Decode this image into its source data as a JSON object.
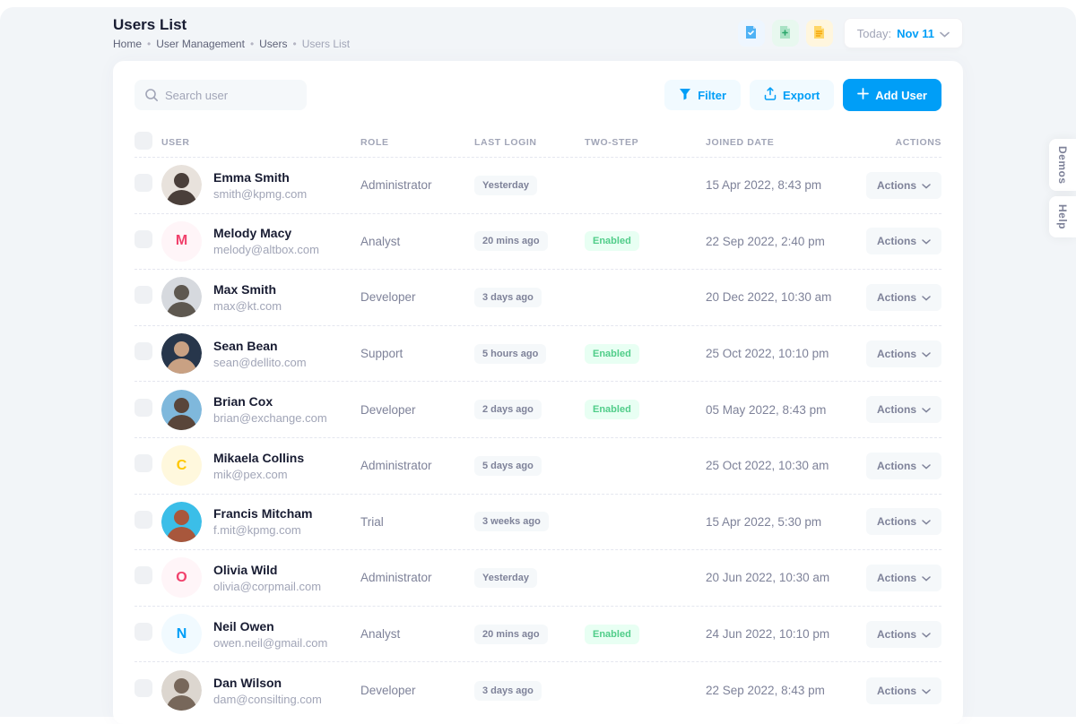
{
  "page": {
    "title": "Users List",
    "breadcrumb": [
      {
        "label": "Home"
      },
      {
        "label": "User Management"
      },
      {
        "label": "Users"
      },
      {
        "label": "Users List",
        "muted": true
      }
    ]
  },
  "topbar": {
    "quick_icons": [
      "file-check-icon",
      "file-plus-icon",
      "file-lines-icon"
    ],
    "today_label": "Today:",
    "today_value": "Nov 11"
  },
  "toolbar": {
    "search_placeholder": "Search user",
    "filter_label": "Filter",
    "export_label": "Export",
    "add_user_label": "Add User"
  },
  "table": {
    "headers": [
      "USER",
      "ROLE",
      "LAST LOGIN",
      "TWO-STEP",
      "JOINED DATE",
      "ACTIONS"
    ],
    "actions_label": "Actions",
    "rows": [
      {
        "name": "Emma Smith",
        "email": "smith@kpmg.com",
        "role": "Administrator",
        "last_login": "Yesterday",
        "two_step": "",
        "joined": "15 Apr 2022, 8:43 pm",
        "avatar": {
          "kind": "photo",
          "bg": "#E8E2DC",
          "fg": "#4A3F3A"
        }
      },
      {
        "name": "Melody Macy",
        "email": "melody@altbox.com",
        "role": "Analyst",
        "last_login": "20 mins ago",
        "two_step": "Enabled",
        "joined": "22 Sep 2022, 2:40 pm",
        "avatar": {
          "kind": "initial",
          "letter": "M",
          "bg": "#FFF5F8",
          "color": "#F1416C"
        }
      },
      {
        "name": "Max Smith",
        "email": "max@kt.com",
        "role": "Developer",
        "last_login": "3 days ago",
        "two_step": "",
        "joined": "20 Dec 2022, 10:30 am",
        "avatar": {
          "kind": "photo",
          "bg": "#D6D9DE",
          "fg": "#5E5850"
        }
      },
      {
        "name": "Sean Bean",
        "email": "sean@dellito.com",
        "role": "Support",
        "last_login": "5 hours ago",
        "two_step": "Enabled",
        "joined": "25 Oct 2022, 10:10 pm",
        "avatar": {
          "kind": "photo",
          "bg": "#27364B",
          "fg": "#C9A183"
        }
      },
      {
        "name": "Brian Cox",
        "email": "brian@exchange.com",
        "role": "Developer",
        "last_login": "2 days ago",
        "two_step": "Enabled",
        "joined": "05 May 2022, 8:43 pm",
        "avatar": {
          "kind": "photo",
          "bg": "#7FB8DC",
          "fg": "#59453A"
        }
      },
      {
        "name": "Mikaela Collins",
        "email": "mik@pex.com",
        "role": "Administrator",
        "last_login": "5 days ago",
        "two_step": "",
        "joined": "25 Oct 2022, 10:30 am",
        "avatar": {
          "kind": "initial",
          "letter": "C",
          "bg": "#FFF8DD",
          "color": "#FFC700"
        }
      },
      {
        "name": "Francis Mitcham",
        "email": "f.mit@kpmg.com",
        "role": "Trial",
        "last_login": "3 weeks ago",
        "two_step": "",
        "joined": "15 Apr 2022, 5:30 pm",
        "avatar": {
          "kind": "photo",
          "bg": "#3BBEE8",
          "fg": "#A8573C"
        }
      },
      {
        "name": "Olivia Wild",
        "email": "olivia@corpmail.com",
        "role": "Administrator",
        "last_login": "Yesterday",
        "two_step": "",
        "joined": "20 Jun 2022, 10:30 am",
        "avatar": {
          "kind": "initial",
          "letter": "O",
          "bg": "#FFF5F8",
          "color": "#F1416C"
        }
      },
      {
        "name": "Neil Owen",
        "email": "owen.neil@gmail.com",
        "role": "Analyst",
        "last_login": "20 mins ago",
        "two_step": "Enabled",
        "joined": "24 Jun 2022, 10:10 pm",
        "avatar": {
          "kind": "initial",
          "letter": "N",
          "bg": "#F1FAFF",
          "color": "#009EF7"
        }
      },
      {
        "name": "Dan Wilson",
        "email": "dam@consilting.com",
        "role": "Developer",
        "last_login": "3 days ago",
        "two_step": "",
        "joined": "22 Sep 2022, 8:43 pm",
        "avatar": {
          "kind": "photo",
          "bg": "#DCD6CF",
          "fg": "#77675A"
        }
      }
    ]
  },
  "side_tabs": {
    "demos": "Demos",
    "help": "Help"
  },
  "colors": {
    "primary": "#009EF7",
    "primary-light": "#F1FAFF",
    "success": "#50CD89",
    "success-light": "#E8FFF3",
    "page-bg": "#F2F5F8",
    "text-dark": "#181C32",
    "text-gray": "#A1A5B7",
    "text-mid": "#7E8299"
  }
}
